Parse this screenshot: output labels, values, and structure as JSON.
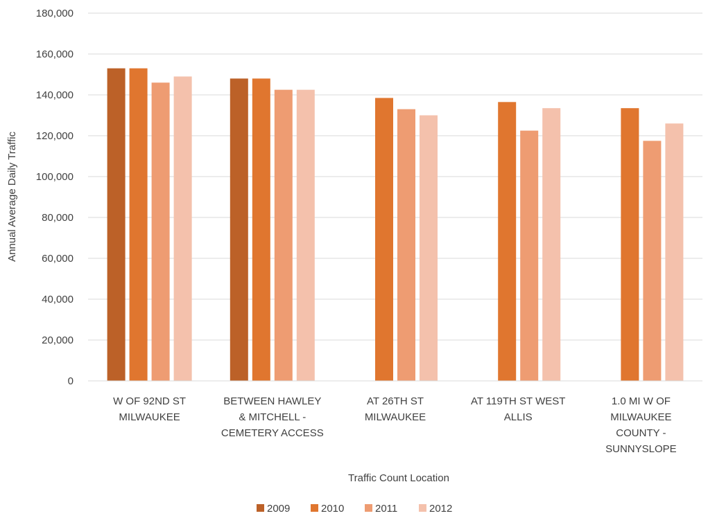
{
  "chart_data": {
    "type": "bar",
    "title": "",
    "xlabel": "Traffic Count Location",
    "ylabel": "Annual Average Daily Traffic",
    "ylim": [
      0,
      180000
    ],
    "yticks": [
      "0",
      "20,000",
      "40,000",
      "60,000",
      "80,000",
      "100,000",
      "120,000",
      "140,000",
      "160,000",
      "180,000"
    ],
    "grid": true,
    "legend_position": "bottom",
    "categories": [
      [
        "W OF 92ND ST",
        "MILWAUKEE"
      ],
      [
        "BETWEEN HAWLEY",
        "& MITCHELL -",
        "CEMETERY ACCESS"
      ],
      [
        "AT 26TH ST",
        "MILWAUKEE"
      ],
      [
        "AT 119TH ST WEST",
        "ALLIS"
      ],
      [
        "1.0 MI W OF",
        "MILWAUKEE",
        "COUNTY -",
        "SUNNYSLOPE"
      ]
    ],
    "series": [
      {
        "name": "2009",
        "color": "#BC6128",
        "values": [
          153000,
          148000,
          null,
          null,
          null
        ]
      },
      {
        "name": "2010",
        "color": "#E0762F",
        "values": [
          153000,
          148000,
          138500,
          136500,
          133500
        ]
      },
      {
        "name": "2011",
        "color": "#EE9C72",
        "values": [
          146000,
          142500,
          133000,
          122500,
          117500
        ]
      },
      {
        "name": "2012",
        "color": "#F4C1AC",
        "values": [
          149000,
          142500,
          130000,
          133500,
          126000
        ]
      }
    ]
  }
}
